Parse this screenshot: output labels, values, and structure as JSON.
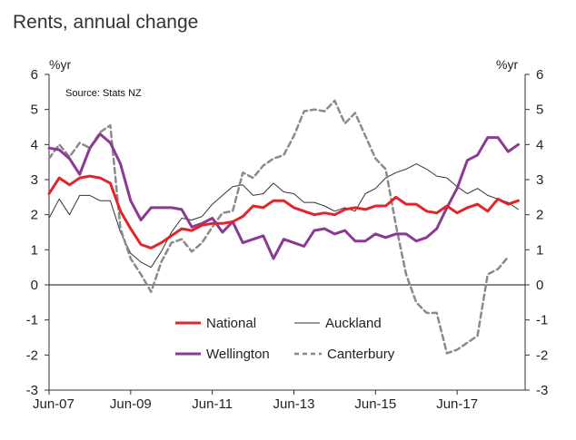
{
  "chart_data": {
    "type": "line",
    "title": "Rents, annual change",
    "source": "Source: Stats NZ",
    "ylabel_left": "%yr",
    "ylabel_right": "%yr",
    "ylim": [
      -3,
      6
    ],
    "yticks": [
      "-3",
      "-2",
      "-1",
      "0",
      "1",
      "2",
      "3",
      "4",
      "5",
      "6"
    ],
    "xlim": [
      0,
      140
    ],
    "xticks": [
      {
        "label": "Jun-07",
        "x": 0
      },
      {
        "label": "Jun-09",
        "x": 24
      },
      {
        "label": "Jun-11",
        "x": 48
      },
      {
        "label": "Jun-13",
        "x": 72
      },
      {
        "label": "Jun-15",
        "x": 96
      },
      {
        "label": "Jun-17",
        "x": 120
      }
    ],
    "x_unit": "months since Jun-07",
    "series": [
      {
        "name": "National",
        "color": "#e3242b",
        "style": "solid-thick",
        "points": [
          [
            0,
            2.6
          ],
          [
            3,
            3.05
          ],
          [
            6,
            2.85
          ],
          [
            9,
            3.05
          ],
          [
            12,
            3.1
          ],
          [
            15,
            3.05
          ],
          [
            18,
            2.9
          ],
          [
            21,
            2.1
          ],
          [
            24,
            1.6
          ],
          [
            27,
            1.15
          ],
          [
            30,
            1.05
          ],
          [
            33,
            1.2
          ],
          [
            36,
            1.4
          ],
          [
            39,
            1.6
          ],
          [
            42,
            1.55
          ],
          [
            45,
            1.7
          ],
          [
            48,
            1.75
          ],
          [
            51,
            1.75
          ],
          [
            54,
            1.8
          ],
          [
            57,
            1.95
          ],
          [
            60,
            2.25
          ],
          [
            63,
            2.2
          ],
          [
            66,
            2.4
          ],
          [
            69,
            2.4
          ],
          [
            72,
            2.2
          ],
          [
            75,
            2.1
          ],
          [
            78,
            2.0
          ],
          [
            81,
            2.05
          ],
          [
            84,
            2.0
          ],
          [
            87,
            2.15
          ],
          [
            90,
            2.2
          ],
          [
            93,
            2.15
          ],
          [
            96,
            2.25
          ],
          [
            99,
            2.25
          ],
          [
            102,
            2.5
          ],
          [
            105,
            2.3
          ],
          [
            108,
            2.3
          ],
          [
            111,
            2.1
          ],
          [
            114,
            2.05
          ],
          [
            117,
            2.25
          ],
          [
            120,
            2.05
          ],
          [
            123,
            2.2
          ],
          [
            126,
            2.3
          ],
          [
            129,
            2.1
          ],
          [
            132,
            2.45
          ],
          [
            135,
            2.3
          ],
          [
            138,
            2.4
          ]
        ]
      },
      {
        "name": "Auckland",
        "color": "#333333",
        "style": "solid-thin",
        "points": [
          [
            0,
            1.9
          ],
          [
            3,
            2.45
          ],
          [
            6,
            2.0
          ],
          [
            9,
            2.55
          ],
          [
            12,
            2.55
          ],
          [
            15,
            2.4
          ],
          [
            18,
            2.4
          ],
          [
            21,
            1.5
          ],
          [
            24,
            0.9
          ],
          [
            27,
            0.65
          ],
          [
            30,
            0.5
          ],
          [
            33,
            0.95
          ],
          [
            36,
            1.5
          ],
          [
            39,
            1.9
          ],
          [
            42,
            1.85
          ],
          [
            45,
            1.95
          ],
          [
            48,
            2.3
          ],
          [
            51,
            2.55
          ],
          [
            54,
            2.8
          ],
          [
            57,
            2.85
          ],
          [
            60,
            2.55
          ],
          [
            63,
            2.6
          ],
          [
            66,
            2.9
          ],
          [
            69,
            2.65
          ],
          [
            72,
            2.6
          ],
          [
            75,
            2.35
          ],
          [
            78,
            2.35
          ],
          [
            81,
            2.25
          ],
          [
            84,
            2.1
          ],
          [
            87,
            2.2
          ],
          [
            90,
            2.1
          ],
          [
            93,
            2.6
          ],
          [
            96,
            2.75
          ],
          [
            99,
            3.05
          ],
          [
            102,
            3.2
          ],
          [
            105,
            3.3
          ],
          [
            108,
            3.45
          ],
          [
            111,
            3.3
          ],
          [
            114,
            3.1
          ],
          [
            117,
            3.05
          ],
          [
            120,
            2.8
          ],
          [
            123,
            2.6
          ],
          [
            126,
            2.75
          ],
          [
            129,
            2.55
          ],
          [
            132,
            2.45
          ],
          [
            135,
            2.35
          ],
          [
            138,
            2.15
          ]
        ]
      },
      {
        "name": "Wellington",
        "color": "#8b3a93",
        "style": "solid-thick",
        "points": [
          [
            0,
            3.9
          ],
          [
            3,
            3.85
          ],
          [
            6,
            3.6
          ],
          [
            9,
            3.15
          ],
          [
            12,
            3.9
          ],
          [
            15,
            4.3
          ],
          [
            18,
            4.05
          ],
          [
            21,
            3.45
          ],
          [
            24,
            2.4
          ],
          [
            27,
            1.85
          ],
          [
            30,
            2.2
          ],
          [
            36,
            2.2
          ],
          [
            39,
            2.15
          ],
          [
            42,
            1.65
          ],
          [
            45,
            1.75
          ],
          [
            48,
            1.9
          ],
          [
            51,
            1.5
          ],
          [
            54,
            1.8
          ],
          [
            57,
            1.2
          ],
          [
            60,
            1.3
          ],
          [
            63,
            1.4
          ],
          [
            66,
            0.75
          ],
          [
            69,
            1.3
          ],
          [
            72,
            1.2
          ],
          [
            75,
            1.1
          ],
          [
            78,
            1.55
          ],
          [
            81,
            1.6
          ],
          [
            84,
            1.45
          ],
          [
            87,
            1.55
          ],
          [
            90,
            1.25
          ],
          [
            93,
            1.25
          ],
          [
            96,
            1.45
          ],
          [
            99,
            1.35
          ],
          [
            102,
            1.45
          ],
          [
            105,
            1.45
          ],
          [
            108,
            1.25
          ],
          [
            111,
            1.35
          ],
          [
            114,
            1.6
          ],
          [
            117,
            2.2
          ],
          [
            120,
            2.75
          ],
          [
            123,
            3.55
          ],
          [
            126,
            3.7
          ],
          [
            129,
            4.2
          ],
          [
            132,
            4.2
          ],
          [
            135,
            3.8
          ],
          [
            138,
            4.0
          ]
        ]
      },
      {
        "name": "Canterbury",
        "color": "#8a8a8a",
        "style": "dashed",
        "points": [
          [
            0,
            3.6
          ],
          [
            3,
            4.0
          ],
          [
            6,
            3.65
          ],
          [
            9,
            4.05
          ],
          [
            12,
            3.9
          ],
          [
            15,
            4.35
          ],
          [
            18,
            4.55
          ],
          [
            21,
            1.6
          ],
          [
            24,
            0.75
          ],
          [
            27,
            0.3
          ],
          [
            30,
            -0.2
          ],
          [
            33,
            0.65
          ],
          [
            36,
            1.2
          ],
          [
            39,
            1.3
          ],
          [
            42,
            0.95
          ],
          [
            45,
            1.2
          ],
          [
            48,
            1.65
          ],
          [
            51,
            2.05
          ],
          [
            54,
            2.1
          ],
          [
            57,
            3.2
          ],
          [
            60,
            3.05
          ],
          [
            63,
            3.4
          ],
          [
            66,
            3.6
          ],
          [
            69,
            3.7
          ],
          [
            72,
            4.25
          ],
          [
            75,
            4.95
          ],
          [
            78,
            5.0
          ],
          [
            81,
            4.95
          ],
          [
            84,
            5.25
          ],
          [
            87,
            4.6
          ],
          [
            90,
            4.9
          ],
          [
            93,
            4.25
          ],
          [
            96,
            3.6
          ],
          [
            99,
            3.3
          ],
          [
            102,
            1.7
          ],
          [
            105,
            0.3
          ],
          [
            108,
            -0.5
          ],
          [
            111,
            -0.8
          ],
          [
            114,
            -0.8
          ],
          [
            117,
            -1.95
          ],
          [
            120,
            -1.85
          ],
          [
            123,
            -1.65
          ],
          [
            126,
            -1.45
          ],
          [
            129,
            0.3
          ],
          [
            132,
            0.45
          ],
          [
            135,
            0.8
          ]
        ]
      }
    ],
    "legend": [
      "National",
      "Auckland",
      "Wellington",
      "Canterbury"
    ]
  }
}
